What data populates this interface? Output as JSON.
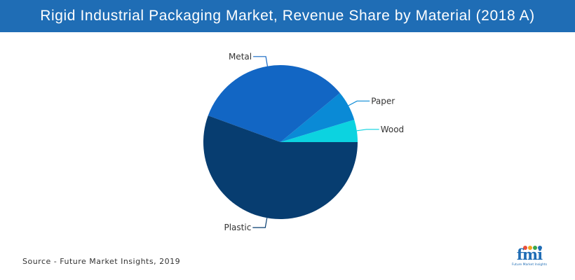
{
  "header": {
    "title": "Rigid Industrial Packaging Market, Revenue Share by Material (2018 A)"
  },
  "chart_data": {
    "type": "pie",
    "title": "Rigid Industrial Packaging Market, Revenue Share by Material (2018 A)",
    "categories": [
      "Wood",
      "Paper",
      "Metal",
      "Plastic"
    ],
    "values": [
      4.7,
      6.3,
      33.4,
      55.6
    ],
    "unit": "%",
    "colors": [
      "#0cd3e0",
      "#0a8ad6",
      "#1266c4",
      "#073d70"
    ],
    "legend": "none",
    "labels_shown": [
      "Metal",
      "Paper",
      "Wood",
      "Plastic"
    ]
  },
  "footer": {
    "source": "Source - Future Market Insights, 2019",
    "logo_text": "fmi",
    "logo_tagline": "Future Market Insights",
    "logo_dot_colors": [
      "#e94f3a",
      "#f3a21b",
      "#3aa74a",
      "#1f6db5"
    ]
  }
}
